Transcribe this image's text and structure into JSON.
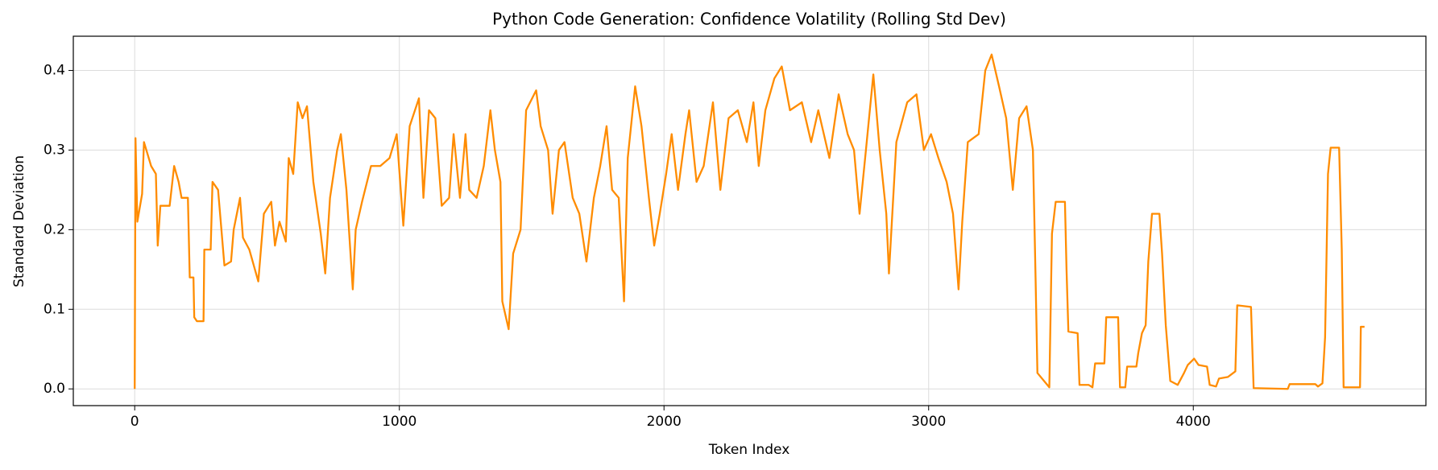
{
  "chart_data": {
    "type": "line",
    "title": "Python Code Generation: Confidence Volatility (Rolling Std Dev)",
    "xlabel": "Token Index",
    "ylabel": "Standard Deviation",
    "x": [
      0,
      3,
      10,
      28,
      35,
      62,
      80,
      87,
      97,
      132,
      149,
      166,
      177,
      201,
      208,
      222,
      225,
      235,
      260,
      263,
      287,
      294,
      315,
      339,
      364,
      374,
      398,
      409,
      433,
      467,
      488,
      516,
      530,
      547,
      571,
      582,
      599,
      616,
      634,
      651,
      675,
      703,
      720,
      738,
      765,
      779,
      800,
      824,
      835,
      859,
      893,
      928,
      963,
      990,
      1015,
      1039,
      1074,
      1091,
      1112,
      1136,
      1160,
      1188,
      1205,
      1229,
      1250,
      1264,
      1292,
      1319,
      1344,
      1361,
      1382,
      1389,
      1413,
      1430,
      1458,
      1479,
      1517,
      1534,
      1562,
      1579,
      1603,
      1624,
      1655,
      1680,
      1707,
      1735,
      1759,
      1783,
      1804,
      1829,
      1849,
      1863,
      1891,
      1915,
      1943,
      1963,
      1984,
      2008,
      2029,
      2053,
      2081,
      2095,
      2123,
      2150,
      2185,
      2213,
      2244,
      2279,
      2313,
      2338,
      2358,
      2383,
      2417,
      2445,
      2476,
      2521,
      2556,
      2583,
      2625,
      2660,
      2694,
      2718,
      2739,
      2763,
      2791,
      2815,
      2840,
      2850,
      2878,
      2919,
      2954,
      2982,
      3009,
      3037,
      3068,
      3092,
      3113,
      3127,
      3148,
      3189,
      3214,
      3238,
      3266,
      3293,
      3318,
      3342,
      3370,
      3394,
      3404,
      3411,
      3456,
      3466,
      3480,
      3515,
      3521,
      3528,
      3563,
      3570,
      3605,
      3619,
      3629,
      3664,
      3671,
      3716,
      3723,
      3743,
      3750,
      3785,
      3792,
      3806,
      3820,
      3830,
      3844,
      3872,
      3882,
      3896,
      3913,
      3941,
      3965,
      3979,
      4003,
      4020,
      4052,
      4062,
      4086,
      4097,
      4131,
      4159,
      4166,
      4218,
      4228,
      4357,
      4364,
      4461,
      4471,
      4488,
      4498,
      4509,
      4519,
      4551,
      4561,
      4568,
      4630,
      4633,
      4647
    ],
    "series": [
      {
        "name": "Rolling Std Dev",
        "color": "#ff8c00",
        "values": [
          0,
          0.315,
          0.21,
          0.245,
          0.31,
          0.28,
          0.27,
          0.18,
          0.23,
          0.23,
          0.28,
          0.26,
          0.24,
          0.24,
          0.14,
          0.14,
          0.09,
          0.085,
          0.085,
          0.175,
          0.175,
          0.26,
          0.25,
          0.155,
          0.16,
          0.2,
          0.24,
          0.19,
          0.175,
          0.135,
          0.22,
          0.235,
          0.18,
          0.21,
          0.185,
          0.29,
          0.27,
          0.36,
          0.34,
          0.355,
          0.26,
          0.195,
          0.145,
          0.24,
          0.3,
          0.32,
          0.25,
          0.125,
          0.2,
          0.235,
          0.28,
          0.28,
          0.29,
          0.32,
          0.205,
          0.33,
          0.365,
          0.24,
          0.35,
          0.34,
          0.23,
          0.24,
          0.32,
          0.24,
          0.32,
          0.25,
          0.24,
          0.28,
          0.35,
          0.3,
          0.26,
          0.11,
          0.075,
          0.17,
          0.2,
          0.35,
          0.375,
          0.33,
          0.3,
          0.22,
          0.3,
          0.31,
          0.24,
          0.22,
          0.16,
          0.24,
          0.28,
          0.33,
          0.25,
          0.24,
          0.11,
          0.29,
          0.38,
          0.33,
          0.24,
          0.18,
          0.22,
          0.27,
          0.32,
          0.25,
          0.32,
          0.35,
          0.26,
          0.28,
          0.36,
          0.25,
          0.34,
          0.35,
          0.31,
          0.36,
          0.28,
          0.35,
          0.39,
          0.405,
          0.35,
          0.36,
          0.31,
          0.35,
          0.29,
          0.37,
          0.32,
          0.3,
          0.22,
          0.3,
          0.395,
          0.3,
          0.22,
          0.145,
          0.31,
          0.36,
          0.37,
          0.3,
          0.32,
          0.29,
          0.26,
          0.22,
          0.125,
          0.21,
          0.31,
          0.32,
          0.4,
          0.42,
          0.38,
          0.34,
          0.25,
          0.34,
          0.355,
          0.3,
          0.14,
          0.02,
          0.002,
          0.195,
          0.235,
          0.235,
          0.15,
          0.072,
          0.07,
          0.005,
          0.005,
          0.002,
          0.032,
          0.032,
          0.09,
          0.09,
          0.002,
          0.002,
          0.028,
          0.028,
          0.045,
          0.07,
          0.08,
          0.16,
          0.22,
          0.22,
          0.17,
          0.08,
          0.01,
          0.005,
          0.02,
          0.03,
          0.038,
          0.03,
          0.028,
          0.005,
          0.003,
          0.013,
          0.015,
          0.022,
          0.105,
          0.103,
          0.001,
          0,
          0.006,
          0.006,
          0.003,
          0.007,
          0.065,
          0.27,
          0.303,
          0.303,
          0.175,
          0.002,
          0.002,
          0.078,
          0.078
        ]
      }
    ],
    "xlim": [
      -232,
      4879
    ],
    "ylim": [
      -0.021,
      0.443
    ],
    "xticks": [
      0,
      1000,
      2000,
      3000,
      4000
    ],
    "yticks": [
      {
        "value": 0,
        "label": "0.0"
      },
      0.1,
      0.2,
      0.3,
      0.4
    ],
    "grid": true
  }
}
